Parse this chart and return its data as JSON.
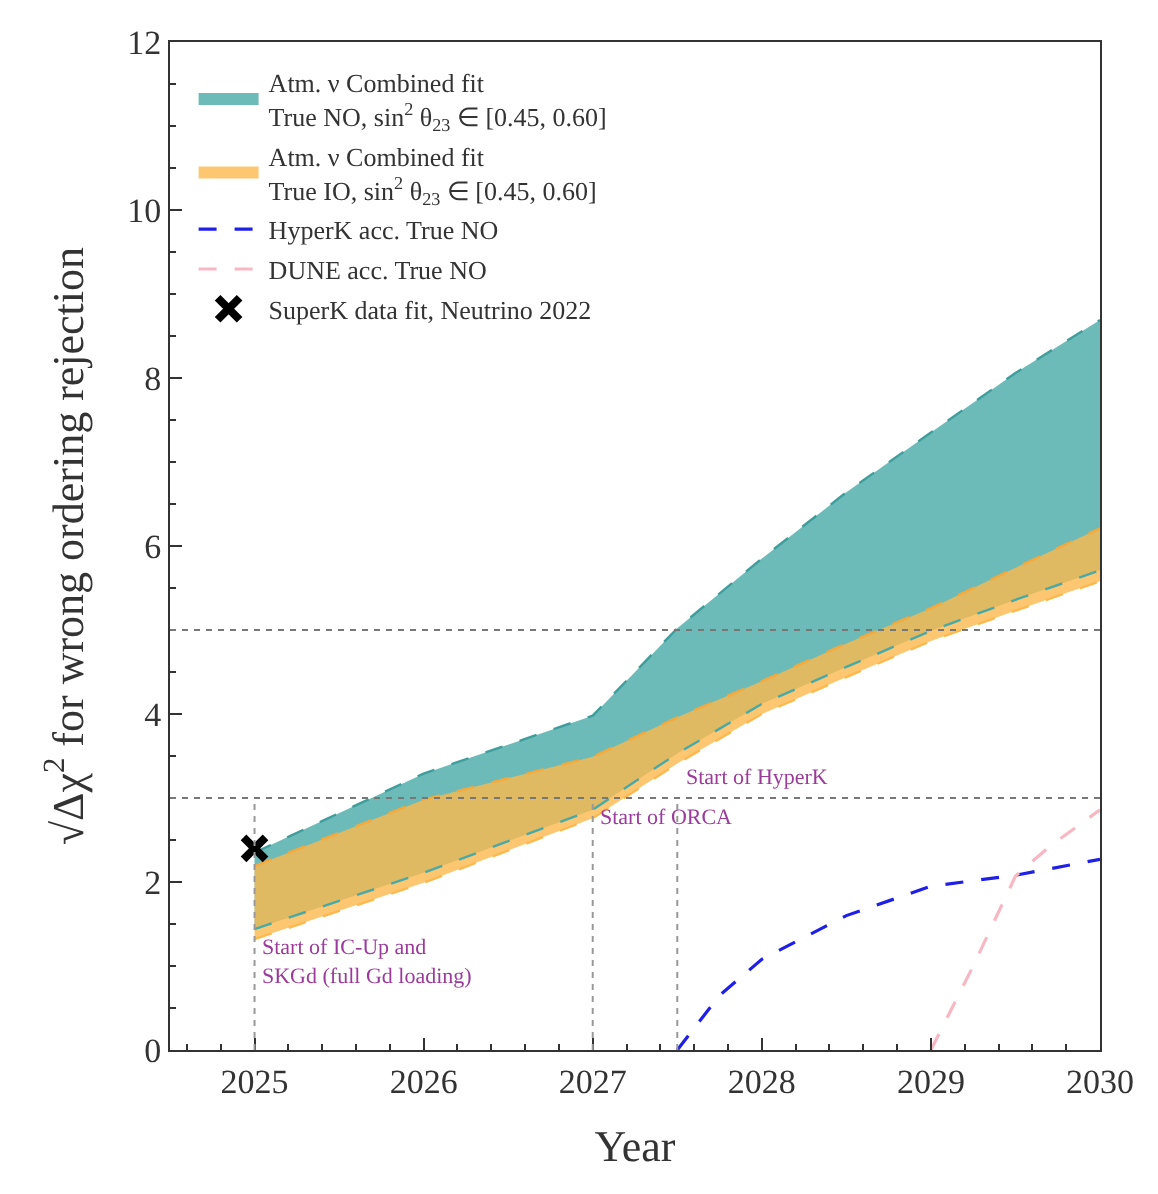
{
  "chart_data": {
    "type": "line",
    "xlabel": "Year",
    "ylabel": "√Δχ$^{2}$ for wrong ordering rejection",
    "xlim": [
      2024.5,
      2030
    ],
    "xticks": [
      2025,
      2026,
      2027,
      2028,
      2029,
      2030
    ],
    "ylim": [
      0,
      12
    ],
    "yticks": [
      0,
      2,
      4,
      6,
      8,
      10,
      12
    ],
    "legend": "top left",
    "series": [
      {
        "name": "Atm. ν Combined fit\nTrue NO, sin$^{2}$ θ$_{23}$ ∈ [0.45, 0.60]",
        "color": "#48aaa8",
        "line_style": "dashed",
        "x": [
          2025,
          2026,
          2027,
          2027.5,
          2028,
          2028.5,
          2029,
          2029.5,
          2030
        ],
        "values": [
          1.44,
          2.11,
          2.86,
          3.53,
          4.12,
          4.56,
          4.99,
          5.36,
          5.71
        ],
        "upper": [
          2.35,
          3.29,
          3.98,
          5.02,
          5.85,
          6.64,
          7.35,
          8.06,
          8.69
        ],
        "lower": [
          1.44,
          2.11,
          2.86,
          3.53,
          4.12,
          4.56,
          4.99,
          5.36,
          5.71
        ]
      },
      {
        "name": "Atm. ν Combined fit\nTrue IO, sin$^{2}$ θ$_{23}$ ∈ [0.45, 0.60]",
        "color": "#fdb94d",
        "line_style": "dashed",
        "x": [
          2025,
          2026,
          2027,
          2027.5,
          2028,
          2028.5,
          2029,
          2029.5,
          2030
        ],
        "values": [
          1.32,
          1.99,
          2.76,
          3.41,
          4.0,
          4.44,
          4.87,
          5.23,
          5.58
        ],
        "upper": [
          2.19,
          2.98,
          3.49,
          3.96,
          4.39,
          4.84,
          5.26,
          5.74,
          6.21
        ],
        "lower": [
          1.32,
          1.99,
          2.76,
          3.41,
          4.0,
          4.44,
          4.87,
          5.23,
          5.58
        ]
      },
      {
        "color": "#3f9e9c",
        "line_style": "dashed",
        "x": [
          2025,
          2026,
          2027,
          2027.5,
          2028,
          2028.5,
          2029,
          2029.5,
          2030
        ],
        "values": [
          2.35,
          3.29,
          3.98,
          5.02,
          5.85,
          6.64,
          7.35,
          8.06,
          8.69
        ]
      },
      {
        "color": "#f5a93a",
        "line_style": "dashed",
        "x": [
          2025,
          2026,
          2027,
          2027.5,
          2028,
          2028.5,
          2029,
          2029.5,
          2030
        ],
        "values": [
          2.19,
          2.98,
          3.49,
          3.96,
          4.39,
          4.84,
          5.26,
          5.74,
          6.21
        ]
      },
      {
        "name": "HyperK acc. True NO",
        "color": "#1f1fe8",
        "line_style": "dashed",
        "x": [
          2027.5,
          2027.75,
          2028,
          2028.5,
          2029,
          2029.5,
          2030
        ],
        "values": [
          0,
          0.65,
          1.08,
          1.6,
          1.95,
          2.08,
          2.27
        ]
      },
      {
        "name": "DUNE acc. True NO",
        "color": "#f7b8c4",
        "line_style": "dashed",
        "x": [
          2029,
          2029.25,
          2029.5,
          2029.7,
          2030
        ],
        "values": [
          0,
          1.0,
          2.07,
          2.42,
          2.86
        ]
      },
      {
        "name": "SuperK data fit, Neutrino 2022",
        "type": "scatter",
        "color": "#000000",
        "marker": "cross",
        "x": [
          2025
        ],
        "values": [
          2.4
        ]
      }
    ],
    "ref_lines": [
      {
        "axis": "y",
        "value": 3,
        "color": "#777777",
        "line_style": "dotted"
      },
      {
        "axis": "y",
        "value": 5,
        "color": "#777777",
        "line_style": "dotted"
      },
      {
        "axis": "x",
        "value": 2025,
        "color": "#999999",
        "line_style": "dotted",
        "label": "Start of IC-Up and\nSKGd (full Gd loading)"
      },
      {
        "axis": "x",
        "value": 2027,
        "color": "#999999",
        "line_style": "dotted",
        "label": "Start of ORCA"
      },
      {
        "axis": "x",
        "value": 2027.5,
        "color": "#999999",
        "line_style": "dotted",
        "label": "Start of HyperK"
      }
    ]
  }
}
